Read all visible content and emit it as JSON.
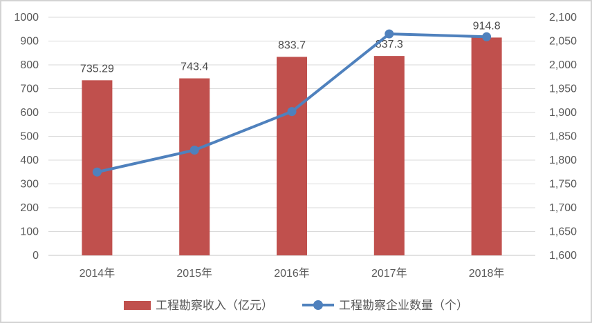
{
  "frame": {
    "background": "#ffffff",
    "border_color": "#d3d3d3"
  },
  "chart_data": {
    "type": "combo-bar-line",
    "categories": [
      "2014年",
      "2015年",
      "2016年",
      "2017年",
      "2018年"
    ],
    "series": [
      {
        "name": "工程勘察收入（亿元）",
        "type": "bar",
        "axis": "left",
        "color": "#c0504d",
        "values": [
          735.29,
          743.4,
          833.7,
          837.3,
          914.8
        ],
        "data_labels": [
          "735.29",
          "743.4",
          "833.7",
          "837.3",
          "914.8"
        ]
      },
      {
        "name": "工程勘察企业数量（个）",
        "type": "line",
        "axis": "right",
        "color": "#4f81bd",
        "values": [
          1775,
          1821,
          1902,
          2065,
          2059
        ]
      }
    ],
    "left_axis": {
      "min": 0,
      "max": 1000,
      "step": 100,
      "ticks": [
        "0",
        "100",
        "200",
        "300",
        "400",
        "500",
        "600",
        "700",
        "800",
        "900",
        "1000"
      ]
    },
    "right_axis": {
      "min": 1600,
      "max": 2100,
      "step": 50,
      "ticks": [
        "1,600",
        "1,650",
        "1,700",
        "1,750",
        "1,800",
        "1,850",
        "1,900",
        "1,950",
        "2,000",
        "2,050",
        "2,100"
      ]
    },
    "grid": true,
    "grid_color": "#d9d9d9",
    "legend_position": "bottom",
    "text_colors": {
      "axis": "#595959",
      "data_label": "#4a4a4a"
    }
  }
}
